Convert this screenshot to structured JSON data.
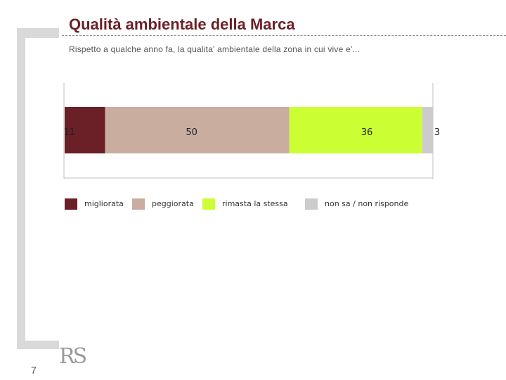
{
  "header": {
    "title": "Qualità ambientale della Marca",
    "subtitle": "Rispetto a qualche anno fa, la qualita' ambientale della zona in cui vive e'..."
  },
  "chart_data": {
    "type": "bar",
    "orientation": "horizontal-stacked-100",
    "categories": [
      ""
    ],
    "series": [
      {
        "name": "migliorata",
        "values": [
          11
        ],
        "color": "#6b1f27"
      },
      {
        "name": "peggiorata",
        "values": [
          50
        ],
        "color": "#c9ad9f"
      },
      {
        "name": "rimasta la stessa",
        "values": [
          36
        ],
        "color": "#ccff33"
      },
      {
        "name": "non sa / non risponde",
        "values": [
          3
        ],
        "color": "#cccccc"
      }
    ],
    "data_labels": [
      "11",
      "50",
      "36",
      "3"
    ],
    "xlim": [
      0,
      100
    ],
    "legend": "bottom",
    "grid": false
  },
  "footer": {
    "page_number": "7",
    "logo_text": "RS"
  }
}
